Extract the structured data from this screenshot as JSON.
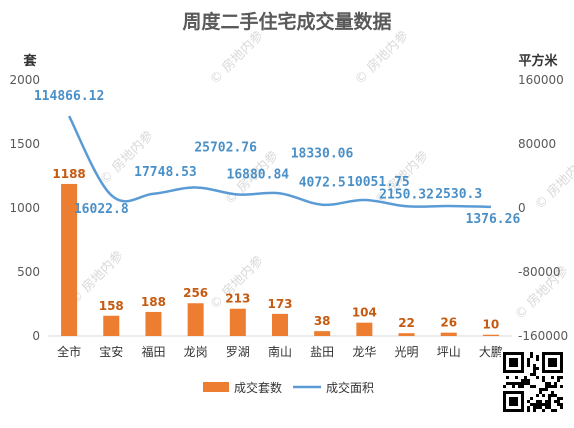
{
  "chart_data": {
    "type": "bar",
    "title": "周度二手住宅成交量数据",
    "y_left_unit": "套",
    "y_right_unit": "平方米",
    "categories": [
      "全市",
      "宝安",
      "福田",
      "龙岗",
      "罗湖",
      "南山",
      "盐田",
      "龙华",
      "光明",
      "坪山",
      "大鹏"
    ],
    "series": [
      {
        "name": "成交套数",
        "type": "bar",
        "axis": "left",
        "values": [
          1188,
          158,
          188,
          256,
          213,
          173,
          38,
          104,
          22,
          26,
          10
        ],
        "labels": [
          "1188",
          "158",
          "188",
          "256",
          "213",
          "173",
          "38",
          "104",
          "22",
          "26",
          "10"
        ],
        "color": "#ed7d31"
      },
      {
        "name": "成交面积",
        "type": "line",
        "axis": "right",
        "values": [
          114866.12,
          16022.8,
          17748.53,
          25702.76,
          16880.84,
          18330.06,
          4072.5,
          10051.75,
          2150.32,
          2530.3,
          1376.26
        ],
        "labels": [
          "114866.12",
          "16022.8",
          "17748.53",
          "25702.76",
          "16880.84",
          "18330.06",
          "4072.5",
          "10051.75",
          "2150.32",
          "2530.3",
          "1376.26"
        ],
        "color": "#5b9bd5",
        "smooth": true
      }
    ],
    "y_left": {
      "ylim": [
        0,
        2000
      ],
      "ticks": [
        "2000",
        "1500",
        "1000",
        "500",
        "0"
      ],
      "tick_values": [
        2000,
        1500,
        1000,
        500,
        0
      ]
    },
    "y_right": {
      "ylim": [
        -160000,
        160000
      ],
      "ticks": [
        "160000",
        "80000",
        "0",
        "-80000",
        "-160000"
      ],
      "tick_values": [
        160000,
        80000,
        0,
        -80000,
        -160000
      ]
    },
    "legend": {
      "position": "bottom",
      "items": [
        "成交套数",
        "成交面积"
      ]
    },
    "grid": false,
    "watermark": "房地内参"
  }
}
